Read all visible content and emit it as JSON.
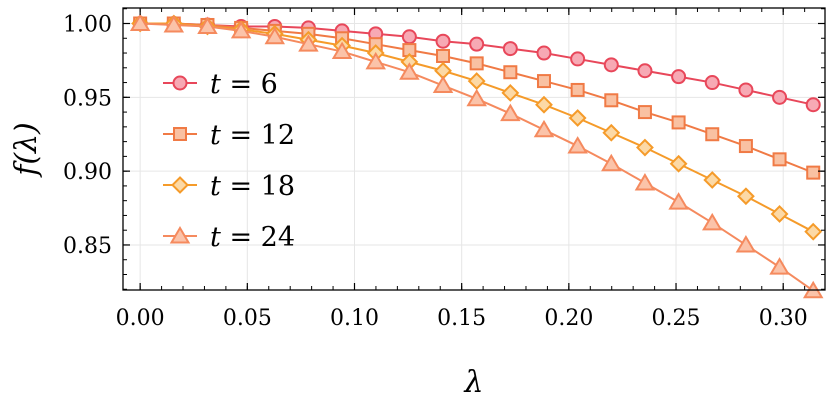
{
  "chart_data": {
    "type": "line",
    "xlabel": "λ",
    "ylabel": "f(λ)",
    "xlim": [
      -0.008,
      0.3195
    ],
    "ylim": [
      0.8195,
      1.0105
    ],
    "xticks": [
      "0.00",
      "0.05",
      "0.10",
      "0.15",
      "0.20",
      "0.25",
      "0.30"
    ],
    "xtick_values": [
      0.0,
      0.05,
      0.1,
      0.15,
      0.2,
      0.25,
      0.3
    ],
    "yticks": [
      "0.85",
      "0.90",
      "0.95",
      "1.00"
    ],
    "ytick_values": [
      0.85,
      0.9,
      0.95,
      1.0
    ],
    "grid": true,
    "legend_position": "left",
    "x": [
      0.0,
      0.0157,
      0.0314,
      0.0471,
      0.0628,
      0.0785,
      0.0942,
      0.1099,
      0.1256,
      0.1413,
      0.157,
      0.1727,
      0.1884,
      0.2041,
      0.2198,
      0.2355,
      0.2512,
      0.2669,
      0.2826,
      0.2983,
      0.314
    ],
    "series": [
      {
        "name": "t = 6",
        "label_var": "t",
        "label_rest": " = 6",
        "marker": "circle",
        "line_color": "#e8475a",
        "fill_color": "#f7a9b4",
        "values": [
          1.0,
          1.0,
          0.999,
          0.998,
          0.998,
          0.997,
          0.995,
          0.993,
          0.991,
          0.988,
          0.986,
          0.983,
          0.98,
          0.976,
          0.972,
          0.968,
          0.964,
          0.96,
          0.955,
          0.95,
          0.945
        ]
      },
      {
        "name": "t = 12",
        "label_var": "t",
        "label_rest": " = 12",
        "marker": "square",
        "line_color": "#f07a45",
        "fill_color": "#f9c1a2",
        "values": [
          1.0,
          1.0,
          0.999,
          0.997,
          0.995,
          0.993,
          0.99,
          0.986,
          0.982,
          0.978,
          0.973,
          0.967,
          0.961,
          0.955,
          0.948,
          0.94,
          0.933,
          0.925,
          0.917,
          0.908,
          0.899
        ]
      },
      {
        "name": "t = 18",
        "label_var": "t",
        "label_rest": " = 18",
        "marker": "diamond",
        "line_color": "#f59b2a",
        "fill_color": "#fcd9a6",
        "values": [
          1.0,
          1.0,
          0.998,
          0.996,
          0.993,
          0.989,
          0.985,
          0.98,
          0.974,
          0.968,
          0.961,
          0.953,
          0.945,
          0.936,
          0.926,
          0.916,
          0.905,
          0.894,
          0.883,
          0.871,
          0.859
        ]
      },
      {
        "name": "t = 24",
        "label_var": "t",
        "label_rest": " = 24",
        "marker": "triangle",
        "line_color": "#f58a5e",
        "fill_color": "#fbc3a9",
        "values": [
          1.0,
          0.999,
          0.998,
          0.995,
          0.991,
          0.986,
          0.981,
          0.974,
          0.967,
          0.958,
          0.949,
          0.939,
          0.928,
          0.917,
          0.905,
          0.892,
          0.879,
          0.865,
          0.85,
          0.835,
          0.819
        ]
      }
    ]
  }
}
